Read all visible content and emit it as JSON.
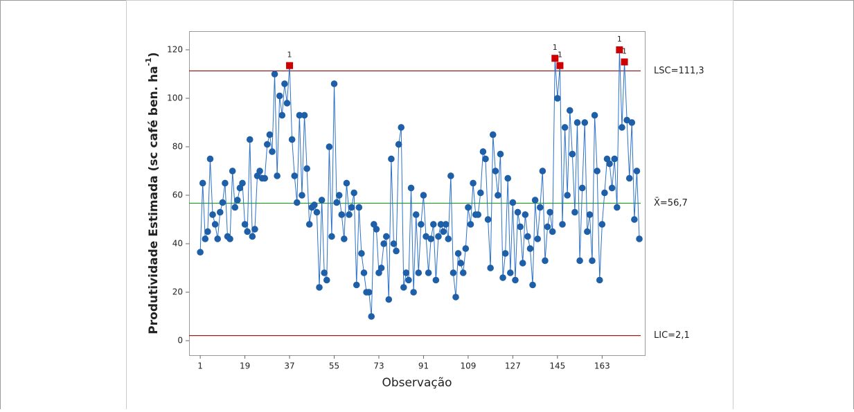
{
  "chart_data": {
    "type": "control",
    "xlabel": "Observação",
    "ylabel": "Produtividade Estimada (sc café ben. ha",
    "ylabel_sup": "-1",
    "ylabel_end": ")",
    "x": [
      1,
      2,
      3,
      4,
      5,
      6,
      7,
      8,
      9,
      10,
      11,
      12,
      13,
      14,
      15,
      16,
      17,
      18,
      19,
      20,
      21,
      22,
      23,
      24,
      25,
      26,
      27,
      28,
      29,
      30,
      31,
      32,
      33,
      34,
      35,
      36,
      37,
      38,
      39,
      40,
      41,
      42,
      43,
      44,
      45,
      46,
      47,
      48,
      49,
      50,
      51,
      52,
      53,
      54,
      55,
      56,
      57,
      58,
      59,
      60,
      61,
      62,
      63,
      64,
      65,
      66,
      67,
      68,
      69,
      70,
      71,
      72,
      73,
      74,
      75,
      76,
      77,
      78,
      79,
      80,
      81,
      82,
      83,
      84,
      85,
      86,
      87,
      88,
      89,
      90,
      91,
      92,
      93,
      94,
      95,
      96,
      97,
      98,
      99,
      100,
      101,
      102,
      103,
      104,
      105,
      106,
      107,
      108,
      109,
      110,
      111,
      112,
      113,
      114,
      115,
      116,
      117,
      118,
      119,
      120,
      121,
      122,
      123,
      124,
      125,
      126,
      127,
      128,
      129,
      130,
      131,
      132,
      133,
      134,
      135,
      136,
      137,
      138,
      139,
      140,
      141,
      142,
      143,
      144,
      145,
      146,
      147,
      148,
      149,
      150,
      151,
      152,
      153,
      154,
      155,
      156,
      157,
      158,
      159,
      160,
      161,
      162,
      163,
      164,
      165,
      166,
      167,
      168,
      169,
      170,
      171,
      172,
      173,
      174,
      175,
      176,
      177,
      178
    ],
    "values": [
      36.5,
      65,
      42,
      45,
      75,
      52,
      48,
      42,
      53,
      57,
      65,
      43,
      42,
      70,
      55,
      58,
      63,
      65,
      48,
      45,
      83,
      43,
      46,
      68,
      70,
      67,
      67,
      81,
      85,
      78,
      110,
      68,
      101,
      93,
      106,
      98,
      113.5,
      83,
      68,
      57,
      93,
      60,
      93,
      71,
      48,
      55,
      56,
      53,
      22,
      58,
      28,
      25,
      80,
      43,
      106,
      57,
      60,
      52,
      42,
      65,
      52,
      55,
      61,
      23,
      55,
      36,
      28,
      20,
      20,
      10,
      48,
      46,
      28,
      30,
      40,
      43,
      17,
      75,
      40,
      37,
      81,
      88,
      22,
      28,
      25,
      63,
      20,
      52,
      28,
      48,
      60,
      43,
      28,
      42,
      48,
      25,
      43,
      48,
      45,
      48,
      42,
      68,
      28,
      18,
      36,
      32,
      28,
      38,
      55,
      48,
      65,
      52,
      52,
      61,
      78,
      75,
      50,
      30,
      85,
      70,
      60,
      77,
      26,
      36,
      67,
      28,
      57,
      25,
      53,
      47,
      32,
      52,
      43,
      38,
      23,
      58,
      42,
      55,
      70,
      33,
      47,
      53,
      45,
      116.5,
      100,
      113.5,
      48,
      88,
      60,
      95,
      77,
      53,
      90,
      33,
      63,
      90,
      45,
      52,
      33,
      93,
      70,
      25,
      48,
      61,
      75,
      73,
      63,
      75,
      55,
      120,
      88,
      115,
      91,
      67,
      90,
      50,
      70,
      42
    ],
    "point_labels": [
      null,
      null,
      null,
      null,
      null,
      null,
      null,
      null,
      null,
      null,
      null,
      null,
      null,
      null,
      null,
      null,
      null,
      null,
      null,
      null,
      null,
      null,
      null,
      null,
      null,
      null,
      null,
      null,
      null,
      null,
      null,
      null,
      null,
      null,
      null,
      null,
      "1",
      null,
      null,
      null,
      null,
      null,
      null,
      null,
      null,
      null,
      null,
      null,
      null,
      null,
      null,
      null,
      null,
      null,
      null,
      null,
      null,
      null,
      null,
      null,
      null,
      null,
      null,
      null,
      null,
      null,
      null,
      null,
      null,
      null,
      null,
      null,
      null,
      null,
      null,
      null,
      null,
      null,
      null,
      null,
      null,
      null,
      null,
      null,
      null,
      null,
      null,
      null,
      null,
      null,
      null,
      null,
      null,
      null,
      null,
      null,
      null,
      null,
      null,
      null,
      null,
      null,
      null,
      null,
      null,
      null,
      null,
      null,
      null,
      null,
      null,
      null,
      null,
      null,
      null,
      null,
      null,
      null,
      null,
      null,
      null,
      null,
      null,
      null,
      null,
      null,
      null,
      null,
      null,
      null,
      null,
      null,
      null,
      null,
      null,
      null,
      null,
      null,
      null,
      null,
      null,
      null,
      null,
      "1",
      null,
      "1",
      null,
      null,
      null,
      null,
      null,
      null,
      null,
      null,
      null,
      null,
      null,
      null,
      null,
      null,
      null,
      null,
      null,
      null,
      null,
      null,
      null,
      null,
      null,
      "1",
      null,
      "1",
      null,
      null,
      null,
      null,
      null,
      null
    ],
    "color": "#1f5fa8",
    "alert_color": "#cc0000",
    "reference_lines": [
      {
        "value": 111.3,
        "label": "LSC=111,3",
        "color": "#8b2323"
      },
      {
        "value": 56.7,
        "label": "X̄=56,7",
        "color": "#2e9b2e"
      },
      {
        "value": 2.1,
        "label": "LIC=2,1",
        "color": "#8b2323"
      }
    ],
    "xlim": [
      -3.5,
      180.5
    ],
    "xticks": [
      1,
      19,
      37,
      55,
      73,
      91,
      109,
      127,
      145,
      163
    ],
    "ylim": [
      -6,
      127.7
    ],
    "yticks": [
      0,
      20,
      40,
      60,
      80,
      100,
      120
    ]
  }
}
